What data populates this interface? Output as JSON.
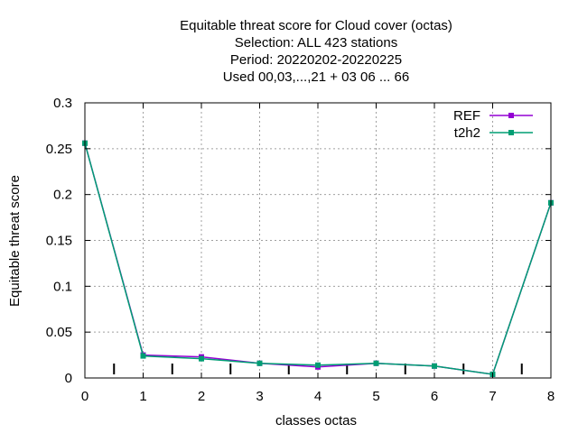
{
  "chart_data": {
    "type": "line",
    "title_lines": [
      "Equitable threat score  for Cloud cover (octas)",
      "Selection: ALL     423 stations",
      "Period: 20220202-20220225",
      "Used  00,03,...,21  + 03 06 ... 66"
    ],
    "xlabel": "classes octas",
    "ylabel": "Equitable threat score",
    "xlim": [
      0,
      8
    ],
    "ylim": [
      0,
      0.3
    ],
    "xticks": [
      "0",
      "1",
      "2",
      "3",
      "4",
      "5",
      "6",
      "7",
      "8"
    ],
    "yticks": [
      "0",
      "0.05",
      "0.1",
      "0.15",
      "0.2",
      "0.25",
      "0.3"
    ],
    "grid": true,
    "legend_position": "top-right",
    "x": [
      0,
      1,
      2,
      3,
      4,
      5,
      6,
      7,
      8
    ],
    "series": [
      {
        "name": "REF",
        "color": "#9400d3",
        "values": [
          0.256,
          0.025,
          0.023,
          0.016,
          0.012,
          0.016,
          0.013,
          0.004,
          0.191
        ]
      },
      {
        "name": "t2h2",
        "color": "#009e73",
        "values": [
          0.256,
          0.024,
          0.021,
          0.016,
          0.014,
          0.016,
          0.013,
          0.004,
          0.191
        ]
      }
    ],
    "count_marks_x": [
      0.5,
      1.5,
      2.5,
      3.5,
      4.5,
      5.5,
      6.5,
      7.5
    ]
  }
}
